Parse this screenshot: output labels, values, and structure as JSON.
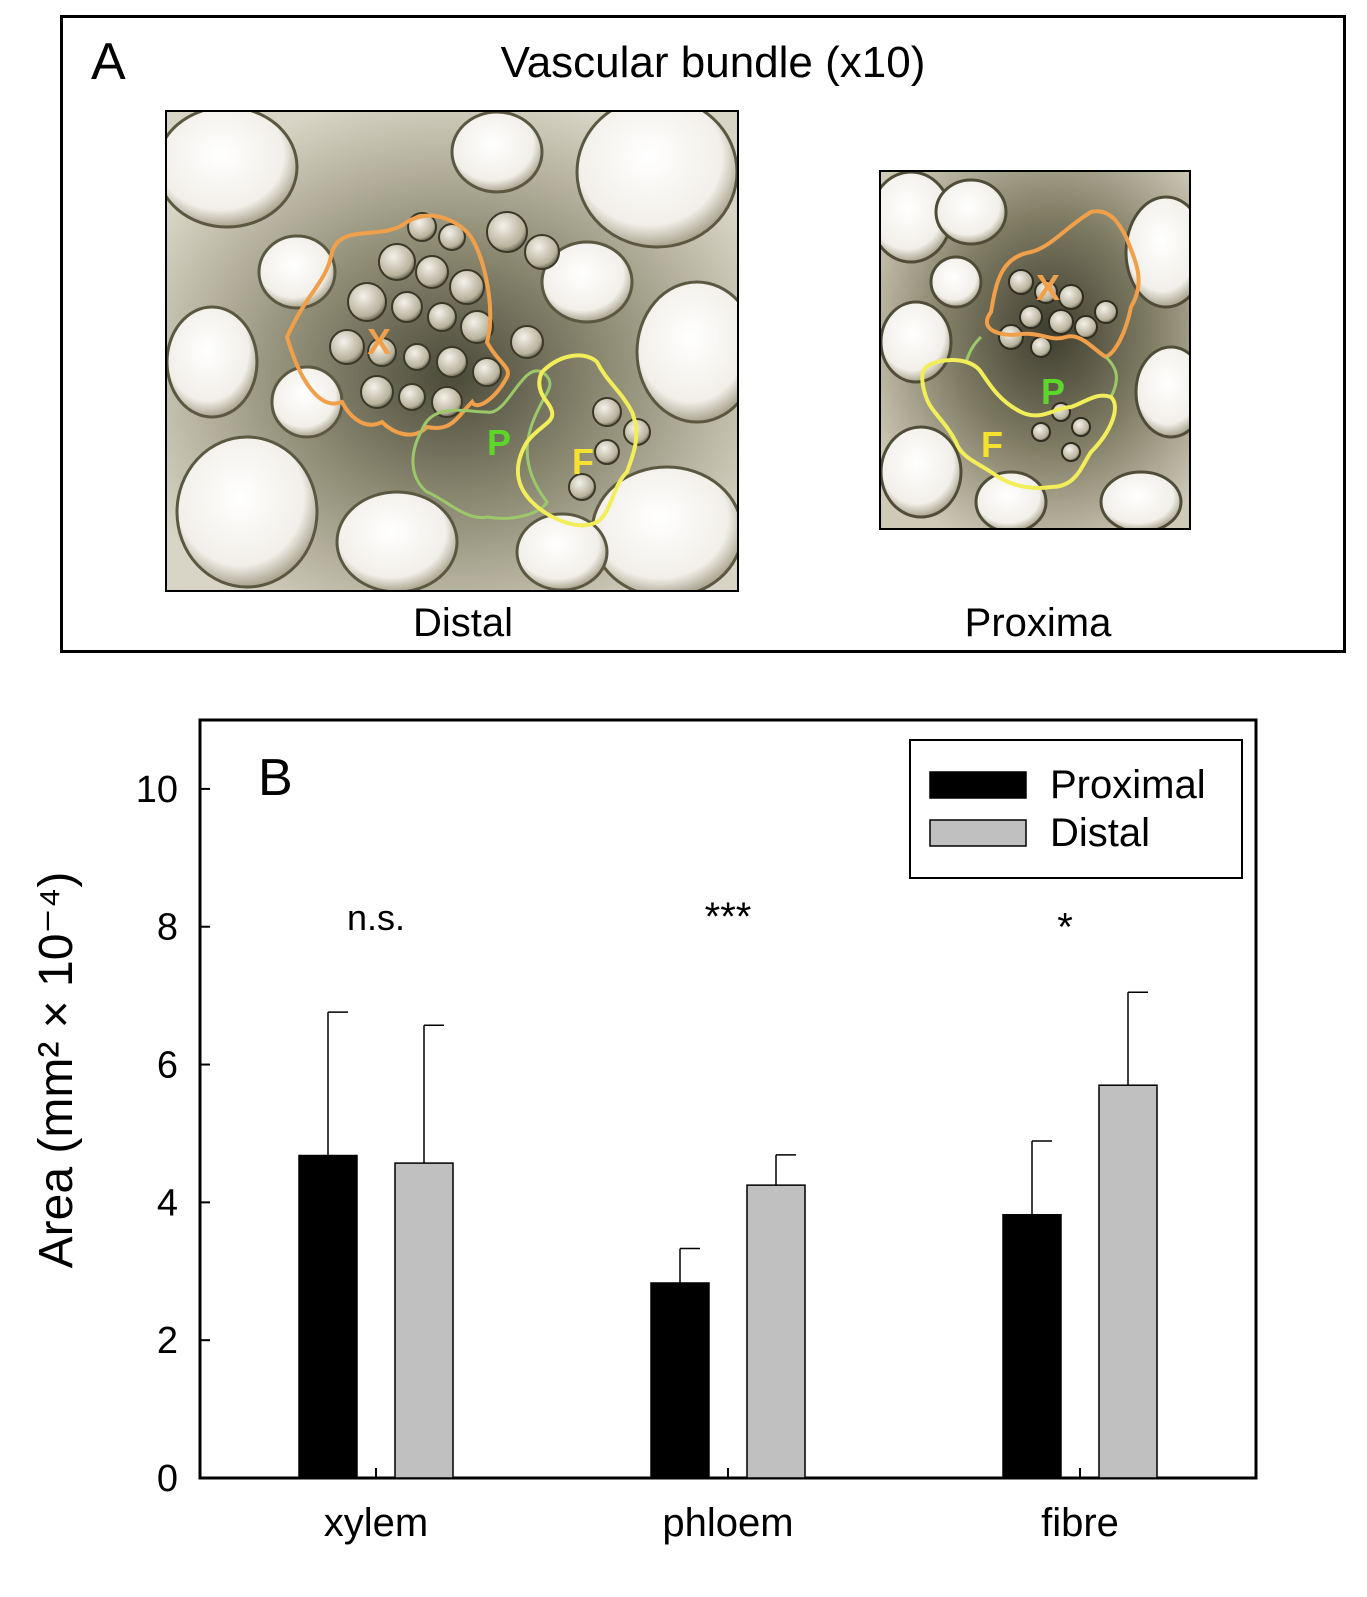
{
  "panel_a": {
    "letter": "A",
    "title": "Vascular bundle (x10)",
    "images": [
      {
        "caption": "Distal",
        "regions": [
          "X",
          "P",
          "F"
        ]
      },
      {
        "caption": "Proxima",
        "regions": [
          "X",
          "P",
          "F"
        ]
      }
    ],
    "colors": {
      "xylem": "#f0a04a",
      "phloem": "#5dd62a",
      "fibre": "#f5e130",
      "phloem_outline": "#9dc86a",
      "fibre_outline": "#f2ee5a"
    }
  },
  "chart_data": {
    "type": "bar",
    "panel_label": "B",
    "categories": [
      "xylem",
      "phloem",
      "fibre"
    ],
    "series": [
      {
        "name": "Proximal",
        "color": "#000000",
        "values": [
          4.68,
          2.83,
          3.82
        ],
        "errors": [
          2.08,
          0.5,
          1.07
        ]
      },
      {
        "name": "Distal",
        "color": "#c0c0c0",
        "values": [
          4.57,
          4.25,
          5.7
        ],
        "errors": [
          2.0,
          0.44,
          1.35
        ]
      }
    ],
    "significance": [
      "n.s.",
      "***",
      "*"
    ],
    "ylabel": "Area (mm² × 10⁻⁴)",
    "yticks": [
      0,
      2,
      4,
      6,
      8,
      10
    ],
    "ylim": [
      0,
      11
    ],
    "legend_position": "top-right"
  }
}
